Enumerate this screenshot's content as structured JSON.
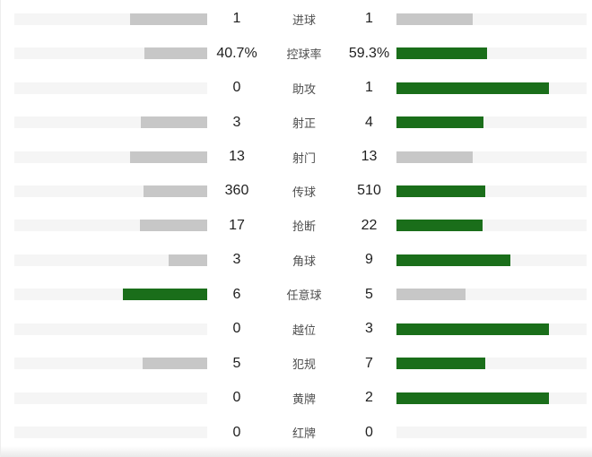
{
  "chart_data": {
    "type": "bar",
    "orientation": "horizontal-paired",
    "description": "Football match statistics comparison, left team vs right team",
    "categories": [
      "进球",
      "控球率",
      "助攻",
      "射正",
      "射门",
      "传球",
      "抢断",
      "角球",
      "任意球",
      "越位",
      "犯规",
      "黄牌",
      "红牌"
    ],
    "series": [
      {
        "name": "left-team",
        "values": [
          1,
          40.7,
          0,
          3,
          13,
          360,
          17,
          3,
          6,
          0,
          5,
          0,
          0
        ],
        "display": [
          "1",
          "40.7%",
          "0",
          "3",
          "13",
          "360",
          "17",
          "3",
          "6",
          "0",
          "5",
          "0",
          "0"
        ]
      },
      {
        "name": "right-team",
        "values": [
          1,
          59.3,
          1,
          4,
          13,
          510,
          22,
          9,
          5,
          3,
          7,
          2,
          0
        ],
        "display": [
          "1",
          "59.3%",
          "1",
          "4",
          "13",
          "510",
          "22",
          "9",
          "5",
          "3",
          "7",
          "2",
          "0"
        ]
      }
    ],
    "bar_rule": "fill width = 80% of track × value/(left+right); leading side green, trailing or tied side gray",
    "colors": {
      "leading": "#1a6e1a",
      "trailing": "#c7c7c7",
      "track": "#f5f5f5",
      "value_text": "#1f1f1f",
      "label_text": "#4f4f4f"
    },
    "legend": null,
    "title": null,
    "grid": false
  }
}
